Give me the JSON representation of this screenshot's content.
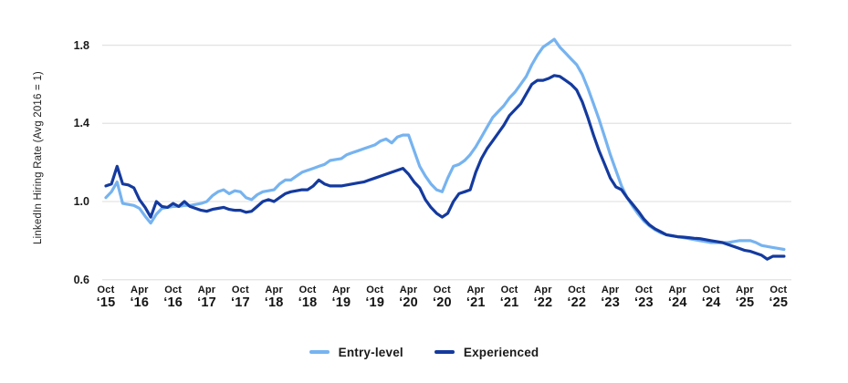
{
  "chart_data": {
    "type": "line",
    "title": "",
    "xlabel": "",
    "ylabel": "LinkedIn Hiring Rate (Avg 2016 = 1)",
    "ylim": [
      0.5,
      1.9
    ],
    "yticks": [
      0.6,
      1.0,
      1.4,
      1.8
    ],
    "grid": "horizontal-only",
    "gridline_color": "#e3e3e3",
    "legend_position": "bottom-center",
    "x_frequency": "monthly",
    "x_range_start": "Oct 2015",
    "x_range_end": "Nov 2025",
    "x_ticks": [
      {
        "month": "Oct",
        "year": "‘15"
      },
      {
        "month": "Apr",
        "year": "‘16"
      },
      {
        "month": "Oct",
        "year": "‘16"
      },
      {
        "month": "Apr",
        "year": "‘17"
      },
      {
        "month": "Oct",
        "year": "‘17"
      },
      {
        "month": "Apr",
        "year": "‘18"
      },
      {
        "month": "Oct",
        "year": "‘18"
      },
      {
        "month": "Apr",
        "year": "‘19"
      },
      {
        "month": "Oct",
        "year": "‘19"
      },
      {
        "month": "Apr",
        "year": "‘20"
      },
      {
        "month": "Oct",
        "year": "‘20"
      },
      {
        "month": "Apr",
        "year": "‘21"
      },
      {
        "month": "Oct",
        "year": "‘21"
      },
      {
        "month": "Apr",
        "year": "‘22"
      },
      {
        "month": "Oct",
        "year": "‘22"
      },
      {
        "month": "Apr",
        "year": "‘23"
      },
      {
        "month": "Oct",
        "year": "‘23"
      },
      {
        "month": "Apr",
        "year": "‘24"
      },
      {
        "month": "Oct",
        "year": "‘24"
      },
      {
        "month": "Apr",
        "year": "‘25"
      },
      {
        "month": "Oct",
        "year": "‘25"
      }
    ],
    "series": [
      {
        "name": "Entry-level",
        "color": "#76b3f0",
        "values": [
          1.02,
          1.05,
          1.1,
          0.99,
          0.985,
          0.98,
          0.965,
          0.925,
          0.89,
          0.935,
          0.965,
          0.97,
          0.975,
          0.975,
          0.98,
          0.98,
          0.985,
          0.99,
          1.0,
          1.03,
          1.05,
          1.06,
          1.04,
          1.055,
          1.05,
          1.02,
          1.01,
          1.035,
          1.05,
          1.055,
          1.06,
          1.09,
          1.11,
          1.11,
          1.13,
          1.15,
          1.16,
          1.17,
          1.18,
          1.19,
          1.21,
          1.215,
          1.22,
          1.24,
          1.25,
          1.26,
          1.27,
          1.28,
          1.29,
          1.31,
          1.32,
          1.3,
          1.33,
          1.34,
          1.34,
          1.26,
          1.18,
          1.13,
          1.09,
          1.06,
          1.05,
          1.12,
          1.18,
          1.19,
          1.21,
          1.24,
          1.28,
          1.33,
          1.38,
          1.43,
          1.46,
          1.49,
          1.53,
          1.56,
          1.6,
          1.64,
          1.7,
          1.75,
          1.79,
          1.81,
          1.83,
          1.79,
          1.76,
          1.73,
          1.7,
          1.65,
          1.58,
          1.5,
          1.42,
          1.33,
          1.24,
          1.16,
          1.08,
          1.02,
          0.975,
          0.935,
          0.9,
          0.875,
          0.855,
          0.84,
          0.83,
          0.825,
          0.82,
          0.815,
          0.81,
          0.805,
          0.8,
          0.795,
          0.79,
          0.79,
          0.79,
          0.79,
          0.795,
          0.8,
          0.8,
          0.8,
          0.79,
          0.775,
          0.77,
          0.765,
          0.76,
          0.755
        ]
      },
      {
        "name": "Experienced",
        "color": "#143a9e",
        "values": [
          1.08,
          1.09,
          1.18,
          1.09,
          1.085,
          1.07,
          1.01,
          0.97,
          0.92,
          1.0,
          0.975,
          0.97,
          0.99,
          0.975,
          1.0,
          0.975,
          0.965,
          0.955,
          0.95,
          0.96,
          0.965,
          0.97,
          0.96,
          0.955,
          0.955,
          0.945,
          0.95,
          0.975,
          1.0,
          1.01,
          1.0,
          1.02,
          1.04,
          1.05,
          1.055,
          1.06,
          1.06,
          1.08,
          1.11,
          1.09,
          1.08,
          1.08,
          1.08,
          1.085,
          1.09,
          1.095,
          1.1,
          1.11,
          1.12,
          1.13,
          1.14,
          1.15,
          1.16,
          1.17,
          1.14,
          1.1,
          1.07,
          1.01,
          0.97,
          0.94,
          0.92,
          0.94,
          1.0,
          1.04,
          1.05,
          1.06,
          1.15,
          1.22,
          1.27,
          1.31,
          1.35,
          1.39,
          1.44,
          1.47,
          1.5,
          1.55,
          1.6,
          1.62,
          1.62,
          1.63,
          1.645,
          1.64,
          1.62,
          1.6,
          1.57,
          1.51,
          1.43,
          1.34,
          1.26,
          1.19,
          1.12,
          1.075,
          1.06,
          1.02,
          0.985,
          0.95,
          0.91,
          0.88,
          0.86,
          0.845,
          0.83,
          0.825,
          0.82,
          0.818,
          0.815,
          0.812,
          0.81,
          0.805,
          0.8,
          0.795,
          0.79,
          0.78,
          0.77,
          0.76,
          0.75,
          0.745,
          0.735,
          0.725,
          0.705,
          0.72,
          0.72,
          0.72
        ]
      }
    ]
  },
  "legend": {
    "items": [
      {
        "label": "Entry-level",
        "color": "#76b3f0"
      },
      {
        "label": "Experienced",
        "color": "#143a9e"
      }
    ]
  },
  "colors": {
    "background": "#ffffff",
    "gridline": "#e3e3e3",
    "text": "#1a1a1a"
  }
}
